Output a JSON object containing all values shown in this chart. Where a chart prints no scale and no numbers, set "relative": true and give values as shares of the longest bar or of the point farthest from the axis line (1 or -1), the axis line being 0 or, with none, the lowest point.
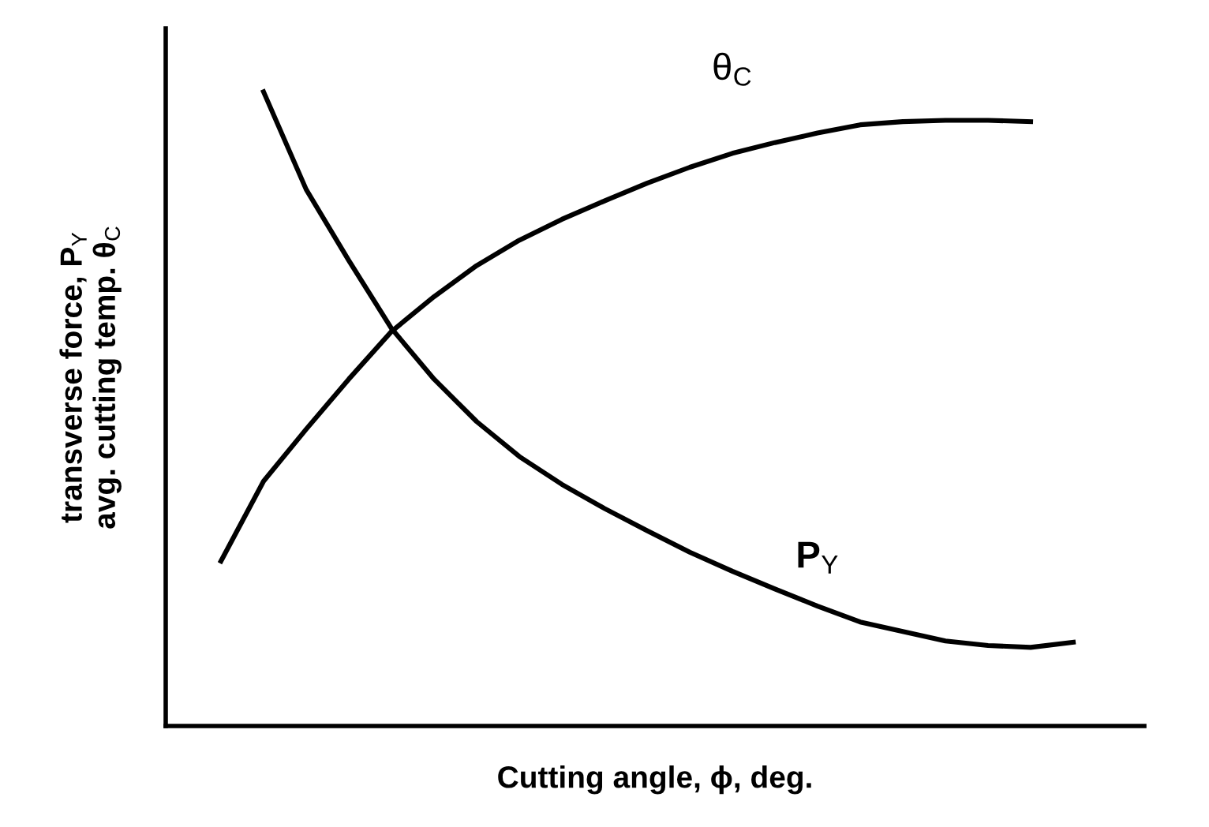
{
  "chart_data": {
    "type": "line",
    "relative": true,
    "xlabel": "Cutting angle, ϕ, deg.",
    "ylabel": "transverse force, P$_{Y}$\navg. cutting temp. θ$_{C}$",
    "legend": false,
    "marker": "none",
    "line_style": "solid",
    "categories": [
      null,
      null,
      null,
      null,
      null,
      null,
      null,
      null,
      null,
      null,
      null,
      null,
      null,
      null,
      null,
      null,
      null,
      null,
      null,
      null,
      null
    ],
    "series": [
      {
        "name": "θ$_{C}$",
        "color": "#000000",
        "values": [
          0.26,
          0.386,
          0.468,
          0.547,
          0.622,
          0.677,
          0.726,
          0.766,
          0.799,
          0.828,
          0.856,
          0.881,
          0.903,
          0.92,
          0.935,
          0.948,
          0.953,
          0.955,
          0.955,
          0.953,
          null
        ]
      },
      {
        "name": "P$_{Y}$",
        "color": "#000000",
        "values": [
          null,
          1.0,
          0.846,
          0.734,
          0.627,
          0.547,
          0.48,
          0.425,
          0.381,
          0.343,
          0.308,
          0.274,
          0.244,
          0.216,
          0.189,
          0.164,
          0.149,
          0.134,
          0.127,
          0.124,
          0.132
        ]
      }
    ]
  }
}
